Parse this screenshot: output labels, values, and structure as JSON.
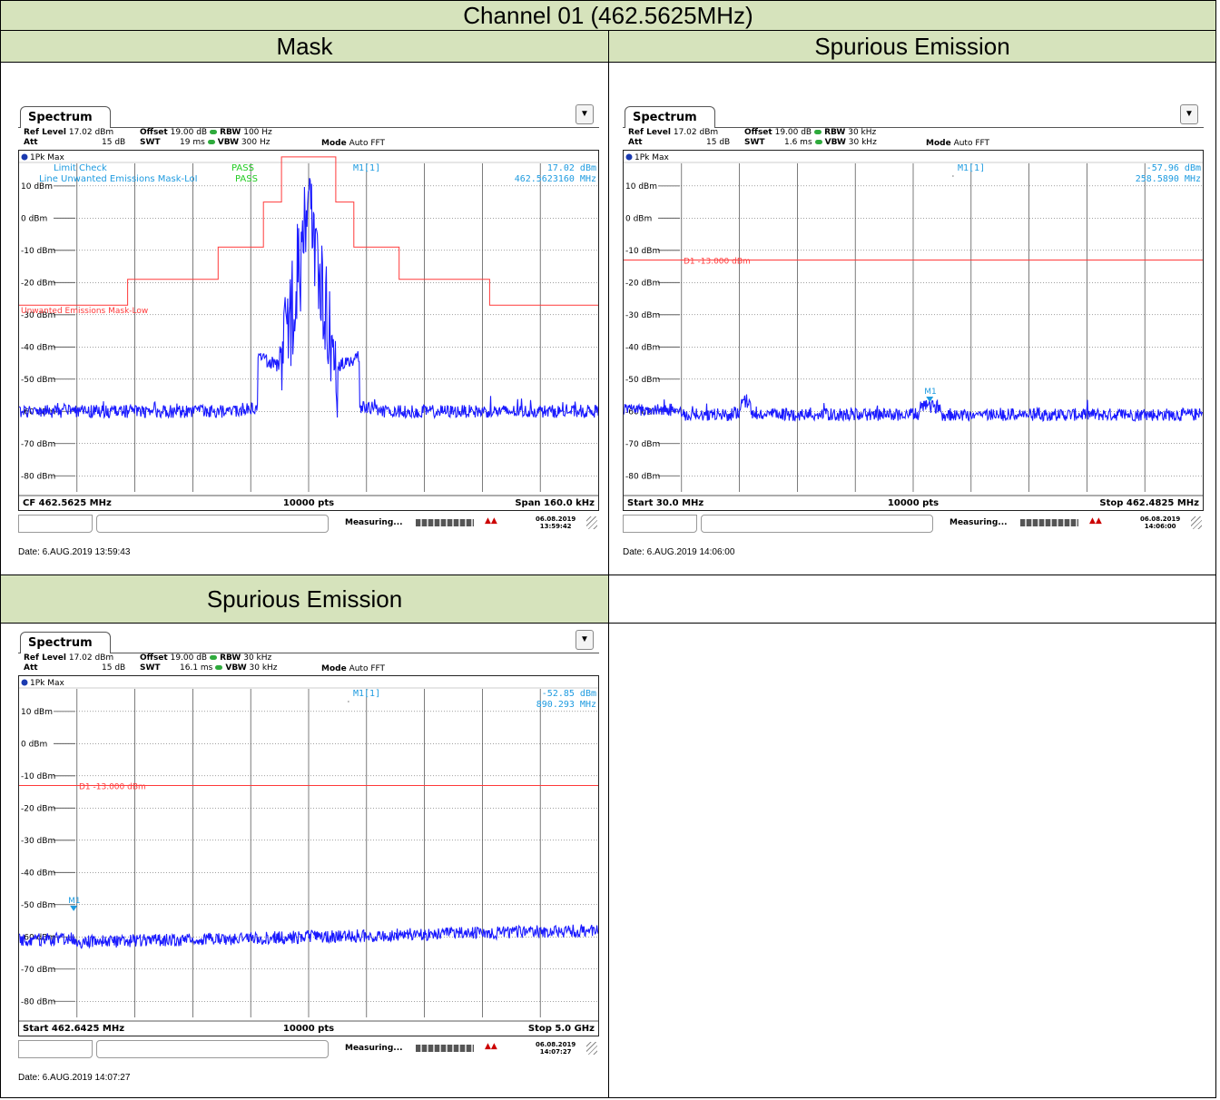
{
  "title": "Channel 01 (462.5625MHz)",
  "panels": [
    {
      "heading": "Mask",
      "tab": "Spectrum",
      "ref_level_label": "Ref Level",
      "ref_level": "17.02 dBm",
      "offset_label": "Offset",
      "offset": "19.00 dB",
      "rbw_label": "RBW",
      "rbw": "100 Hz",
      "att_label": "Att",
      "att": "15 dB",
      "swt_label": "SWT",
      "swt": "19 ms",
      "vbw_label": "VBW",
      "vbw": "300 Hz",
      "mode_label": "Mode",
      "mode": "Auto FFT",
      "trace_label": "1Pk Max",
      "marker_name": "M1[1]",
      "marker_level": "17.02 dBm",
      "marker_freq": "462.5623160 MHz",
      "limit_check": "Limit Check",
      "limit_check_result": "PASS",
      "line_label": "Line Unwanted Emissions Mask-LoІ",
      "line_result": "PASS",
      "mask_label": "Unwanted Emissions Mask-Low",
      "footer_left": "CF 462.5625 MHz",
      "footer_mid": "10000 pts",
      "footer_right": "Span 160.0 kHz",
      "status": "Measuring...",
      "sb_date": "06.08.2019",
      "sb_time": "13:59:42",
      "date_line": "Date: 6.AUG.2019  13:59:43",
      "chart_data": {
        "type": "line",
        "x_unit": "kHz offset from CF",
        "y_unit": "dBm",
        "ylim": [
          -85,
          17
        ],
        "xlim": [
          -80,
          80
        ],
        "yticks": [
          "10 dBm",
          "0 dBm",
          "-10 dBm",
          "-20 dBm",
          "-30 dBm",
          "-40 dBm",
          "-50 dBm",
          "-60 dBm",
          "-70 dBm",
          "-80 dBm"
        ],
        "mask": {
          "x": [
            -80,
            -50,
            -50,
            -25,
            -25,
            -12.5,
            -12.5,
            -7.5,
            -7.5,
            7.5,
            7.5,
            12.5,
            12.5,
            25,
            25,
            50,
            50,
            80
          ],
          "y": [
            -27,
            -27,
            -19,
            -19,
            -9,
            -9,
            5,
            5,
            19,
            19,
            5,
            5,
            -9,
            -9,
            -19,
            -19,
            -27,
            -27
          ]
        },
        "noise_floor": -60,
        "peak": 17.02,
        "peak_x": 0
      }
    },
    {
      "heading": "Spurious Emission",
      "tab": "Spectrum",
      "ref_level_label": "Ref Level",
      "ref_level": "17.02 dBm",
      "offset_label": "Offset",
      "offset": "19.00 dB",
      "rbw_label": "RBW",
      "rbw": "30 kHz",
      "att_label": "Att",
      "att": "15 dB",
      "swt_label": "SWT",
      "swt": "1.6 ms",
      "vbw_label": "VBW",
      "vbw": "30 kHz",
      "mode_label": "Mode",
      "mode": "Auto FFT",
      "trace_label": "1Pk Max",
      "marker_name": "M1[1]",
      "marker_level": "-57.96 dBm",
      "marker_freq": "258.5890 MHz",
      "d1_label": "D1  -13.000 dBm",
      "marker_tag": "M1",
      "footer_left": "Start 30.0 MHz",
      "footer_mid": "10000 pts",
      "footer_right": "Stop 462.4825 MHz",
      "status": "Measuring...",
      "sb_date": "06.08.2019",
      "sb_time": "14:06:00",
      "date_line": "Date: 6.AUG.2019  14:06:00",
      "chart_data": {
        "type": "line",
        "y_unit": "dBm",
        "ylim": [
          -85,
          17
        ],
        "xlim": [
          30.0,
          462.4825
        ],
        "d1": -13.0,
        "marker_x": 258.589,
        "marker_y": -57.96,
        "yticks": [
          "10 dBm",
          "0 dBm",
          "-10 dBm",
          "-20 dBm",
          "-30 dBm",
          "-40 dBm",
          "-50 dBm",
          "-60 dBm",
          "-70 dBm",
          "-80 dBm"
        ],
        "noise_floor": -61
      }
    },
    {
      "heading": "Spurious Emission",
      "tab": "Spectrum",
      "ref_level_label": "Ref Level",
      "ref_level": "17.02 dBm",
      "offset_label": "Offset",
      "offset": "19.00 dB",
      "rbw_label": "RBW",
      "rbw": "30 kHz",
      "att_label": "Att",
      "att": "15 dB",
      "swt_label": "SWT",
      "swt": "16.1 ms",
      "vbw_label": "VBW",
      "vbw": "30 kHz",
      "mode_label": "Mode",
      "mode": "Auto FFT",
      "trace_label": "1Pk Max",
      "marker_name": "M1[1]",
      "marker_level": "-52.85 dBm",
      "marker_freq": "890.293 MHz",
      "d1_label": "D1  -13.000 dBm",
      "marker_tag": "M1",
      "footer_left": "Start 462.6425 MHz",
      "footer_mid": "10000 pts",
      "footer_right": "Stop 5.0 GHz",
      "status": "Measuring...",
      "sb_date": "06.08.2019",
      "sb_time": "14:07:27",
      "date_line": "Date: 6.AUG.2019  14:07:27",
      "chart_data": {
        "type": "line",
        "y_unit": "dBm",
        "ylim": [
          -85,
          17
        ],
        "xlim": [
          462.6425,
          5000
        ],
        "d1": -13.0,
        "marker_x": 890.293,
        "marker_y": -52.85,
        "yticks": [
          "10 dBm",
          "0 dBm",
          "-10 dBm",
          "-20 dBm",
          "-30 dBm",
          "-40 dBm",
          "-50 dBm",
          "-60 dBm",
          "-70 dBm",
          "-80 dBm"
        ],
        "noise_floor": -61
      }
    }
  ],
  "colors": {
    "trace": "#1a1aff",
    "limit": "#ff3a3a",
    "marker": "#1e9be0",
    "pass": "#22cc22",
    "header": "#d6e3bc"
  }
}
